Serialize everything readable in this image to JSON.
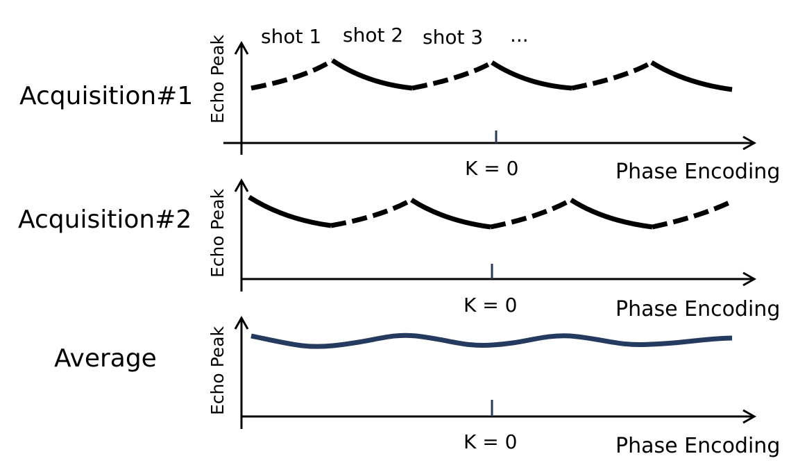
{
  "colors": {
    "axis": "#000000",
    "acquisition_curve": "#000000",
    "average_curve": "#243a5e",
    "k0_tick": "#243a5e"
  },
  "shot_labels": [
    "shot 1",
    "shot 2",
    "shot 3",
    "..."
  ],
  "rows": [
    {
      "id": "acquisition1",
      "label": "Acquisition#1",
      "ylabel": "Echo Peak",
      "xlabel": "Phase Encoding",
      "k0_label": "K = 0",
      "curve": "acquisition",
      "segment_styles": [
        "dashed",
        "solid",
        "dashed",
        "solid",
        "dashed",
        "solid"
      ]
    },
    {
      "id": "acquisition2",
      "label": "Acquisition#2",
      "ylabel": "Echo Peak",
      "xlabel": "Phase Encoding",
      "k0_label": "K = 0",
      "curve": "acquisition",
      "segment_styles": [
        "solid",
        "dashed",
        "solid",
        "dashed",
        "solid",
        "dashed"
      ]
    },
    {
      "id": "average",
      "label": "Average",
      "ylabel": "Echo Peak",
      "xlabel": "Phase Encoding",
      "k0_label": "K = 0",
      "curve": "average",
      "segment_styles": []
    }
  ]
}
